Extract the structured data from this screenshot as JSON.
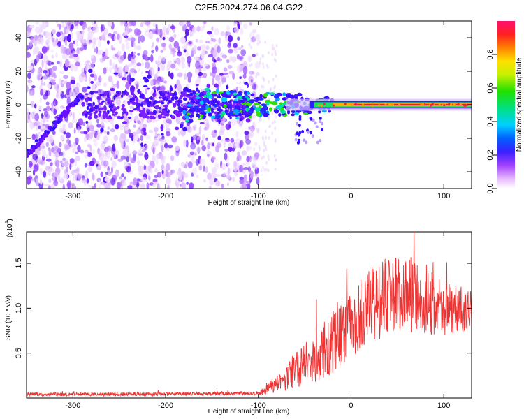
{
  "title": "C2E5.2024.274.06.04.G22",
  "chart_data": [
    {
      "type": "heatmap",
      "xlabel": "Height of straight line (km)",
      "ylabel": "Frequency (Hz)",
      "xlim": [
        -350,
        130
      ],
      "ylim": [
        -50,
        50
      ],
      "x_ticks": [
        -300,
        -200,
        -100,
        0,
        100
      ],
      "y_ticks": [
        -40,
        -20,
        0,
        20,
        40
      ],
      "colorbar": {
        "label": "Normalized spectral amplitude",
        "range": [
          0,
          1
        ],
        "ticks": [
          "0.0",
          "0.2",
          "0.4",
          "0.6",
          "0.8"
        ]
      },
      "features": {
        "carrier_line": {
          "freq": 0,
          "x_start": -40,
          "x_end": 130
        },
        "diagonal_trend": {
          "x_start": -350,
          "freq_start": -30,
          "x_end": -290,
          "freq_end": 6
        },
        "noise_region_end_x": -110
      }
    },
    {
      "type": "line",
      "xlabel": "Height of straight line (km)",
      "ylabel": "SNR (10 * v/v)",
      "y_scale_label": "(x10",
      "y_scale_exponent": "4",
      "xlim": [
        -350,
        130
      ],
      "ylim": [
        0,
        1.85
      ],
      "x_ticks": [
        -300,
        -200,
        -100,
        0,
        100
      ],
      "y_ticks": [
        "0.5",
        "1.0",
        "1.5"
      ],
      "color": "#ee3333",
      "envelope": {
        "x": [
          -350,
          -100,
          -90,
          -70,
          -50,
          -30,
          -10,
          0,
          10,
          30,
          50,
          70,
          90,
          110,
          130
        ],
        "y": [
          0.04,
          0.05,
          0.1,
          0.22,
          0.38,
          0.52,
          0.72,
          0.82,
          0.95,
          1.08,
          1.18,
          1.12,
          1.02,
          0.98,
          1.0
        ]
      },
      "spread": {
        "x": [
          -350,
          -100,
          -90,
          -70,
          -50,
          -30,
          -10,
          0,
          30,
          60,
          130
        ],
        "y": [
          0.02,
          0.02,
          0.06,
          0.14,
          0.24,
          0.32,
          0.36,
          0.38,
          0.45,
          0.42,
          0.22
        ]
      }
    }
  ]
}
